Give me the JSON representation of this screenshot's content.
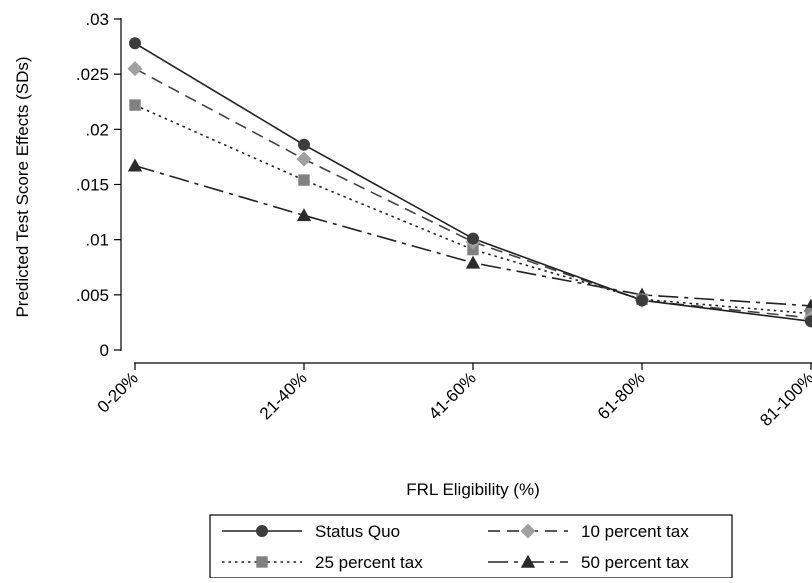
{
  "chart_data": {
    "type": "line",
    "title": "",
    "xlabel": "FRL Eligibility (%)",
    "ylabel": "Predicted Test Score Effects (SDs)",
    "categories": [
      "0-20%",
      "21-40%",
      "41-60%",
      "61-80%",
      "81-100%"
    ],
    "ylim": [
      0,
      0.03
    ],
    "y_ticks": [
      0,
      0.005,
      0.01,
      0.015,
      0.02,
      0.025,
      0.03
    ],
    "y_tick_labels": [
      "0",
      ".005",
      ".01",
      ".015",
      ".02",
      ".025",
      ".03"
    ],
    "grid": false,
    "legend_position": "bottom",
    "series": [
      {
        "name": "Status Quo",
        "values": [
          0.0278,
          0.0186,
          0.0101,
          0.0045,
          0.0026
        ],
        "color": "#3c3c3c",
        "marker": "circle",
        "dash": "solid"
      },
      {
        "name": "10 percent tax",
        "values": [
          0.0255,
          0.0173,
          0.0098,
          0.0045,
          0.0029
        ],
        "color": "#a0a0a0",
        "marker": "diamond",
        "dash": "dash"
      },
      {
        "name": "25 percent tax",
        "values": [
          0.0222,
          0.0154,
          0.0091,
          0.0046,
          0.0033
        ],
        "color": "#808080",
        "marker": "square",
        "dash": "dot"
      },
      {
        "name": "50 percent tax",
        "values": [
          0.0167,
          0.0122,
          0.0079,
          0.005,
          0.004
        ],
        "color": "#2a2a2a",
        "marker": "triangle",
        "dash": "longdash-dot"
      }
    ]
  }
}
